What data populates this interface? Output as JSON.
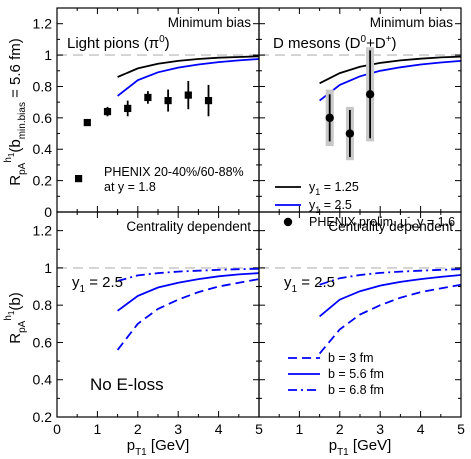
{
  "chart_data": [
    {
      "type": "scatter",
      "panel": "top-left",
      "title": "Minimum bias",
      "label": "Light pions",
      "label_sup": "(π",
      "label_sup2": "0",
      "label_close": ")",
      "ylabel": "R",
      "ylabel_sub": "pA",
      "ylabel_sup": "h",
      "ylabel_supsub": "1",
      "ylabel_rest": "(b",
      "ylabel_rest_sub": "min.bias",
      "ylabel_end": " = 5.6 fm)",
      "xlim": [
        0,
        5
      ],
      "ylim": [
        0,
        1.3
      ],
      "yticks": [
        "0",
        "0.2",
        "0.4",
        "0.6",
        "0.8",
        "1",
        "1.2"
      ],
      "reference_line": 1,
      "series": [
        {
          "kind": "curve",
          "color": "#000000",
          "style": "solid",
          "x": [
            1.5,
            2.0,
            2.5,
            3.0,
            3.5,
            4.0,
            4.5,
            5.0
          ],
          "y": [
            0.86,
            0.915,
            0.945,
            0.963,
            0.975,
            0.983,
            0.988,
            0.992
          ]
        },
        {
          "kind": "curve",
          "color": "#0000ff",
          "style": "solid",
          "x": [
            1.5,
            2.0,
            2.5,
            3.0,
            3.5,
            4.0,
            4.5,
            5.0
          ],
          "y": [
            0.74,
            0.84,
            0.89,
            0.92,
            0.94,
            0.955,
            0.966,
            0.975
          ]
        },
        {
          "kind": "points",
          "name": "PHENIX 20-40%/60-88%",
          "name2": "at y = 1.8",
          "x": [
            0.75,
            1.25,
            1.75,
            2.25,
            2.75,
            3.25,
            3.75
          ],
          "y": [
            0.57,
            0.64,
            0.66,
            0.73,
            0.71,
            0.745,
            0.71
          ],
          "err": [
            0.02,
            0.03,
            0.05,
            0.04,
            0.07,
            0.09,
            0.1
          ]
        }
      ]
    },
    {
      "type": "scatter",
      "panel": "top-right",
      "title": "Minimum bias",
      "label": "D mesons",
      "xlim": [
        0,
        5
      ],
      "ylim": [
        0,
        1.3
      ],
      "reference_line": 1,
      "series": [
        {
          "kind": "curve",
          "name": "y",
          "name_sub": "1",
          "name_val": " = 1.25",
          "color": "#000000",
          "style": "solid",
          "x": [
            1.5,
            2.0,
            2.5,
            3.0,
            3.5,
            4.0,
            4.5,
            5.0
          ],
          "y": [
            0.82,
            0.885,
            0.925,
            0.95,
            0.966,
            0.977,
            0.985,
            0.99
          ]
        },
        {
          "kind": "curve",
          "name": "y",
          "name_sub": "1",
          "name_val": " = 2.5",
          "color": "#0000ff",
          "style": "solid",
          "x": [
            1.5,
            2.0,
            2.5,
            3.0,
            3.5,
            4.0,
            4.5,
            5.0
          ],
          "y": [
            0.71,
            0.81,
            0.865,
            0.9,
            0.922,
            0.94,
            0.953,
            0.963
          ]
        },
        {
          "kind": "points",
          "name": "PHENIX prelim. μ",
          "name_sup": "-",
          "name_val": ", y = 1.6",
          "x": [
            1.75,
            2.25,
            2.75
          ],
          "y": [
            0.6,
            0.5,
            0.75
          ],
          "err": [
            0.15,
            0.15,
            0.28
          ],
          "syst": [
            0.18,
            0.17,
            0.3
          ]
        }
      ]
    },
    {
      "type": "line",
      "panel": "bottom-left",
      "title": "Centrality dependent",
      "rapidity_label": "y",
      "rapidity_sub": "1",
      "rapidity_val": " = 2.5",
      "note": "No E-loss",
      "ylabel": "R",
      "ylabel_sub": "pA",
      "ylabel_sup": "h",
      "ylabel_supsub": "1",
      "ylabel_rest": "(b)",
      "xlabel": "p",
      "xlabel_sub": "T1",
      "xlabel_rest": " [GeV]",
      "xlim": [
        0,
        5
      ],
      "ylim": [
        0.2,
        1.3
      ],
      "xticks": [
        "0",
        "1",
        "2",
        "3",
        "4",
        "5"
      ],
      "yticks": [
        "0.2",
        "0.4",
        "0.6",
        "0.8",
        "1",
        "1.2"
      ],
      "reference_line": 1,
      "series": [
        {
          "color": "#0000ff",
          "style": "dashed",
          "x": [
            1.5,
            2.0,
            2.5,
            3.0,
            3.5,
            4.0,
            4.5,
            5.0
          ],
          "y": [
            0.56,
            0.7,
            0.78,
            0.83,
            0.87,
            0.9,
            0.92,
            0.94
          ]
        },
        {
          "color": "#0000ff",
          "style": "solid",
          "x": [
            1.5,
            2.0,
            2.5,
            3.0,
            3.5,
            4.0,
            4.5,
            5.0
          ],
          "y": [
            0.77,
            0.85,
            0.895,
            0.92,
            0.94,
            0.955,
            0.965,
            0.972
          ]
        },
        {
          "color": "#0000ff",
          "style": "dashdot",
          "x": [
            1.5,
            2.0,
            2.5,
            3.0,
            3.5,
            4.0,
            4.5,
            5.0
          ],
          "y": [
            0.93,
            0.96,
            0.972,
            0.98,
            0.985,
            0.99,
            0.993,
            0.995
          ]
        }
      ]
    },
    {
      "type": "line",
      "panel": "bottom-right",
      "title": "Centrality dependent",
      "rapidity_label": "y",
      "rapidity_sub": "1",
      "rapidity_val": " = 2.5",
      "xlabel": "p",
      "xlabel_sub": "T1",
      "xlabel_rest": " [GeV]",
      "xlim": [
        0,
        5
      ],
      "ylim": [
        0.2,
        1.3
      ],
      "xticks": [
        "1",
        "2",
        "3",
        "4",
        "5"
      ],
      "reference_line": 1,
      "series": [
        {
          "name": "b = 3 fm",
          "color": "#0000ff",
          "style": "dashed",
          "x": [
            1.5,
            2.0,
            2.5,
            3.0,
            3.5,
            4.0,
            4.5,
            5.0
          ],
          "y": [
            0.54,
            0.67,
            0.75,
            0.8,
            0.84,
            0.87,
            0.89,
            0.91
          ]
        },
        {
          "name": "b = 5.6 fm",
          "color": "#0000ff",
          "style": "solid",
          "x": [
            1.5,
            2.0,
            2.5,
            3.0,
            3.5,
            4.0,
            4.5,
            5.0
          ],
          "y": [
            0.74,
            0.83,
            0.875,
            0.905,
            0.925,
            0.94,
            0.952,
            0.962
          ]
        },
        {
          "name": "b = 6.8 fm",
          "color": "#0000ff",
          "style": "dashdot",
          "x": [
            1.5,
            2.0,
            2.5,
            3.0,
            3.5,
            4.0,
            4.5,
            5.0
          ],
          "y": [
            0.91,
            0.945,
            0.962,
            0.973,
            0.98,
            0.985,
            0.99,
            0.993
          ]
        }
      ]
    }
  ]
}
